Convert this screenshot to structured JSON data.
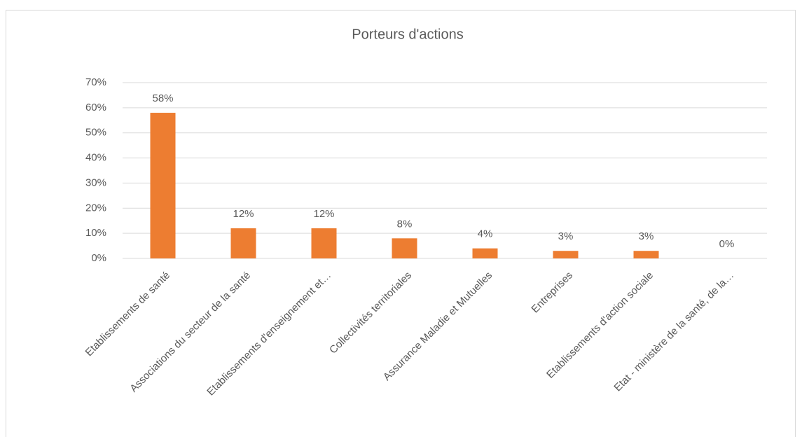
{
  "chart_data": {
    "type": "bar",
    "title": "Porteurs d'actions",
    "categories": [
      "Etablissements de santé",
      "Associations du secteur de la santé",
      "Etablissements d'enseignement et…",
      "Collectivités territoriales",
      "Assurance Maladie et Mutuelles",
      "Entreprises",
      "Etablissements d'action sociale",
      "Etat - ministère de la santé, de la…"
    ],
    "values": [
      58,
      12,
      12,
      8,
      4,
      3,
      3,
      0
    ],
    "value_labels": [
      "58%",
      "12%",
      "12%",
      "8%",
      "4%",
      "3%",
      "3%",
      "0%"
    ],
    "color": "#ed7d31",
    "ylim": [
      0,
      70
    ],
    "yticks": [
      {
        "value": 0,
        "label": "0%"
      },
      {
        "value": 10,
        "label": "10%"
      },
      {
        "value": 20,
        "label": "20%"
      },
      {
        "value": 30,
        "label": "30%"
      },
      {
        "value": 40,
        "label": "40%"
      },
      {
        "value": 50,
        "label": "50%"
      },
      {
        "value": 60,
        "label": "60%"
      },
      {
        "value": 70,
        "label": "70%"
      }
    ],
    "grid": true
  }
}
